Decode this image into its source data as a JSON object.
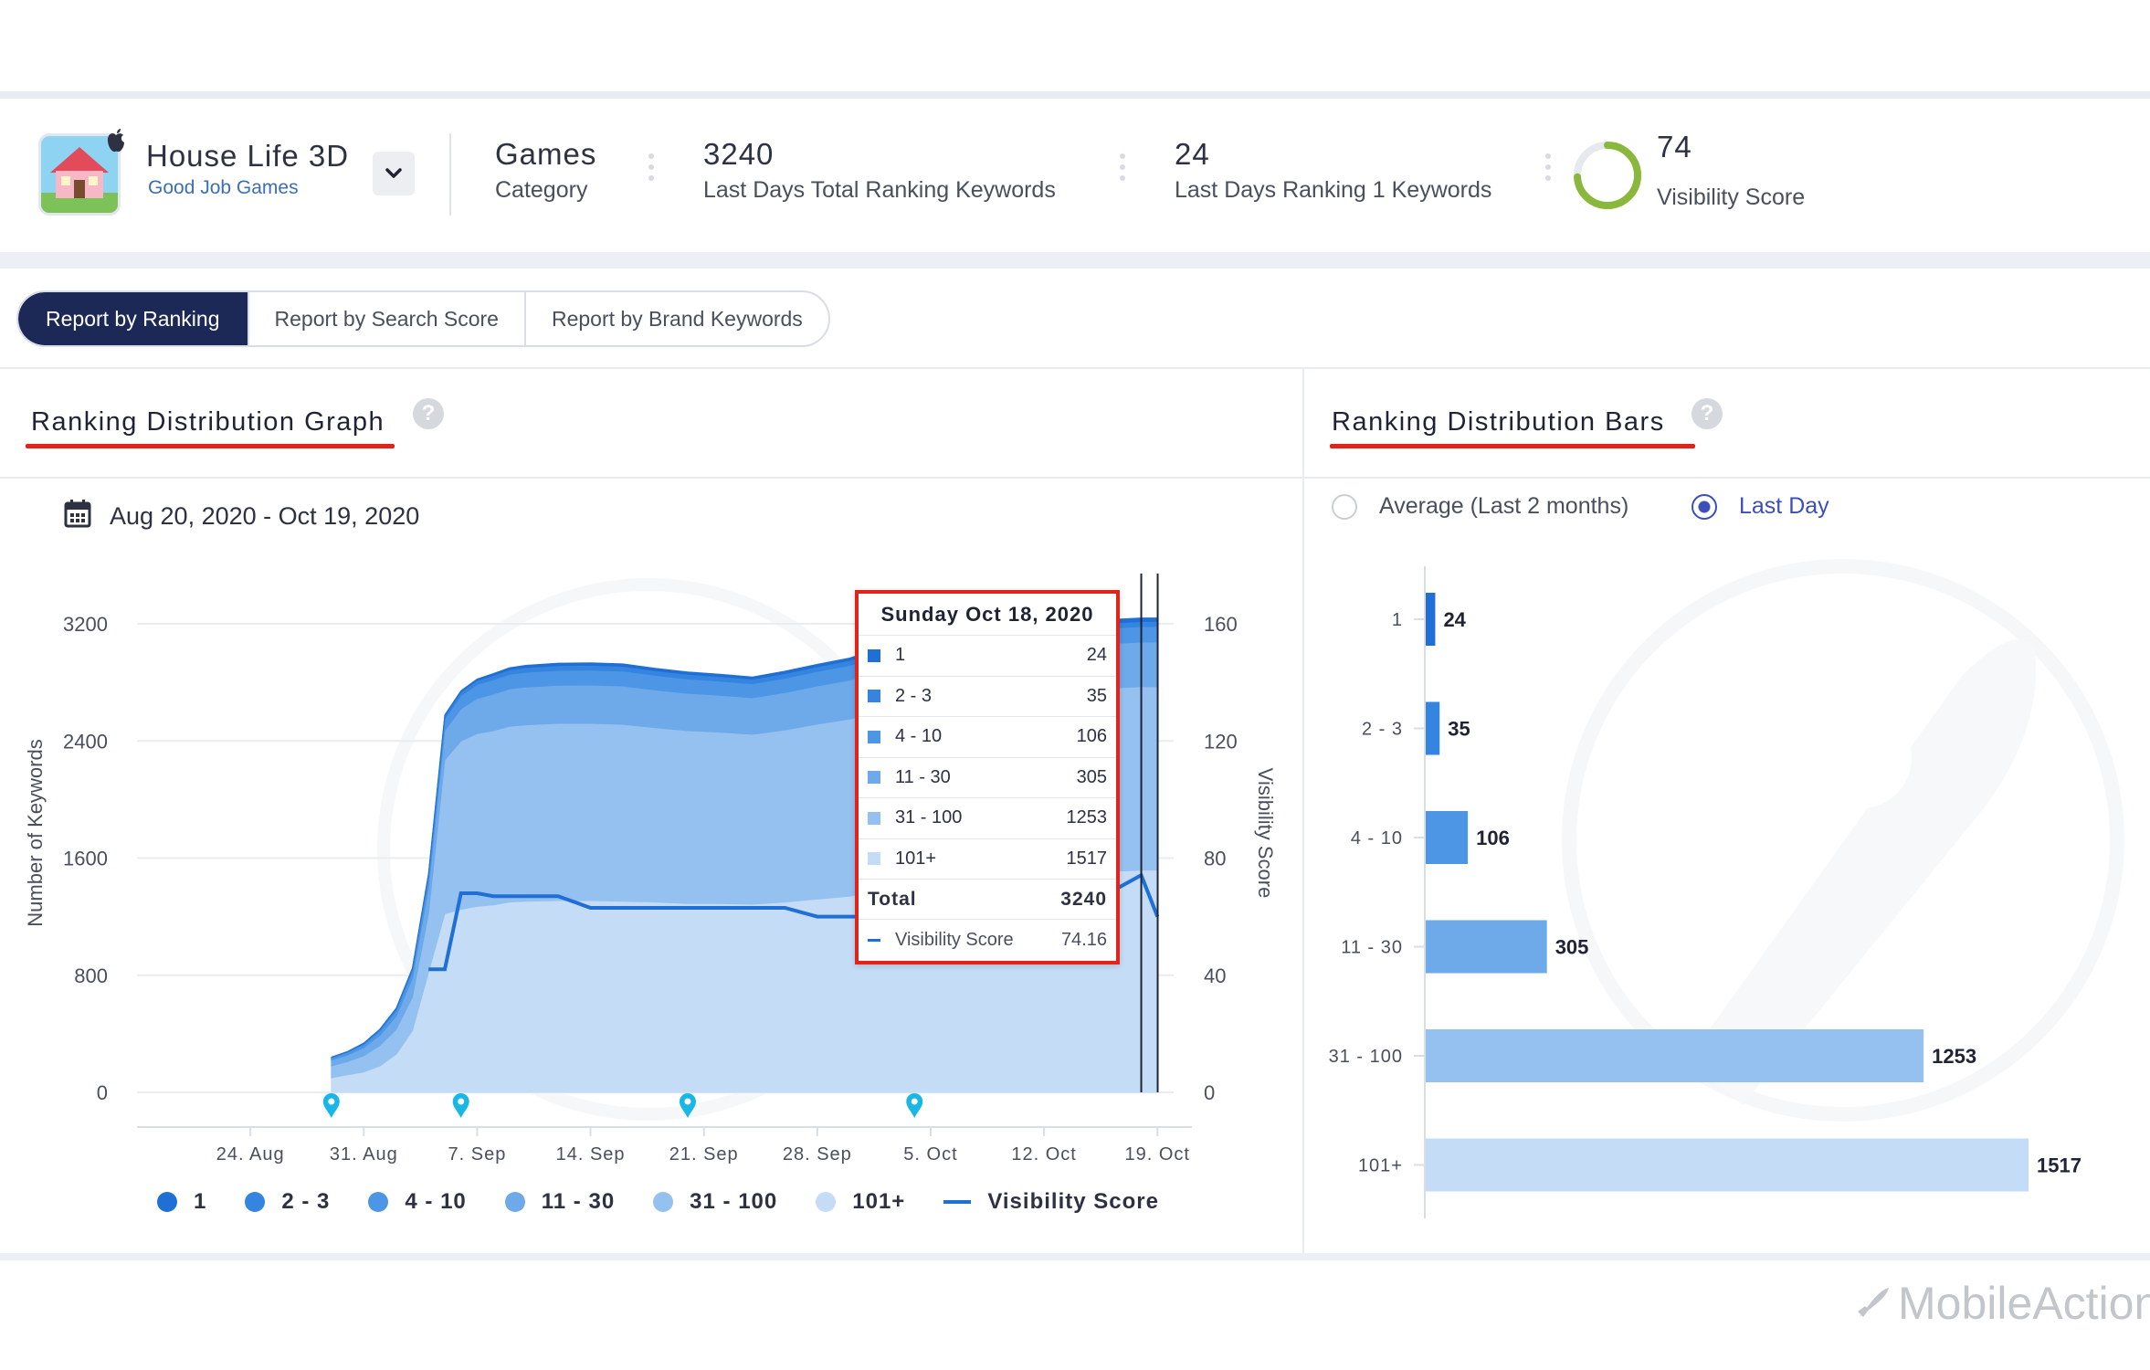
{
  "app": {
    "name": "House Life 3D",
    "developer": "Good Job Games"
  },
  "stats": {
    "category_value": "Games",
    "category_label": "Category",
    "total_keywords_value": "3240",
    "total_keywords_label": "Last Days Total Ranking Keywords",
    "rank1_value": "24",
    "rank1_label": "Last Days Ranking 1 Keywords",
    "visibility_value": "74",
    "visibility_label": "Visibility Score",
    "visibility_fraction": 0.74
  },
  "tabs": [
    {
      "label": "Report by Ranking",
      "active": true
    },
    {
      "label": "Report by Search Score",
      "active": false
    },
    {
      "label": "Report by Brand Keywords",
      "active": false
    }
  ],
  "graph_panel": {
    "title": "Ranking Distribution Graph",
    "help": "?",
    "date_range": "Aug 20, 2020 - Oct 19, 2020"
  },
  "bars_panel": {
    "title": "Ranking Distribution Bars",
    "help": "?",
    "radio_average": "Average (Last 2 months)",
    "radio_last_day": "Last Day",
    "selected": "Last Day"
  },
  "tooltip": {
    "date": "Sunday Oct 18, 2020",
    "rows": [
      {
        "label": "1",
        "value": "24"
      },
      {
        "label": "2 - 3",
        "value": "35"
      },
      {
        "label": "4 - 10",
        "value": "106"
      },
      {
        "label": "11 - 30",
        "value": "305"
      },
      {
        "label": "31 - 100",
        "value": "1253"
      },
      {
        "label": "101+",
        "value": "1517"
      }
    ],
    "total_label": "Total",
    "total_value": "3240",
    "vis_label": "Visibility Score",
    "vis_value": "74.16"
  },
  "legend": [
    {
      "label": "1",
      "color": "#1f6fd6"
    },
    {
      "label": "2 - 3",
      "color": "#3484e0"
    },
    {
      "label": "4 - 10",
      "color": "#4d96e6"
    },
    {
      "label": "11 - 30",
      "color": "#6eaaea"
    },
    {
      "label": "31 - 100",
      "color": "#95c1f0"
    },
    {
      "label": "101+",
      "color": "#c4dcf6"
    },
    {
      "label": "Visibility Score",
      "color": "#1f6fd6"
    }
  ],
  "watermark": "MobileAction",
  "chart_data": [
    {
      "type": "area",
      "ylabel": "Number of Keywords",
      "y2label": "Visibility Score",
      "ylim": [
        0,
        3200
      ],
      "y_ticks": [
        "0",
        "800",
        "1600",
        "2400",
        "3200"
      ],
      "y2lim": [
        0,
        160
      ],
      "y2_ticks": [
        "0",
        "40",
        "80",
        "120",
        "160"
      ],
      "x_ticks": [
        "24. Aug",
        "31. Aug",
        "7. Sep",
        "14. Sep",
        "21. Sep",
        "28. Sep",
        "5. Oct",
        "12. Oct",
        "19. Oct"
      ],
      "x_dates": [
        "2020-08-29",
        "2020-08-30",
        "2020-08-31",
        "2020-09-01",
        "2020-09-02",
        "2020-09-03",
        "2020-09-04",
        "2020-09-05",
        "2020-09-06",
        "2020-09-07",
        "2020-09-08",
        "2020-09-09",
        "2020-09-10",
        "2020-09-12",
        "2020-09-14",
        "2020-09-16",
        "2020-09-18",
        "2020-09-20",
        "2020-09-22",
        "2020-09-24",
        "2020-09-26",
        "2020-09-28",
        "2020-09-30",
        "2020-10-02",
        "2020-10-05",
        "2020-10-10",
        "2020-10-14",
        "2020-10-18",
        "2020-10-19"
      ],
      "series": [
        {
          "name": "1",
          "values": [
            0,
            0,
            2,
            2,
            3,
            3,
            5,
            6,
            8,
            10,
            12,
            14,
            15,
            16,
            16,
            16,
            16,
            16,
            15,
            15,
            16,
            16,
            17,
            18,
            20,
            22,
            23,
            24,
            24
          ]
        },
        {
          "name": "2 - 3",
          "values": [
            5,
            6,
            8,
            10,
            12,
            15,
            20,
            22,
            25,
            28,
            30,
            31,
            32,
            33,
            33,
            33,
            32,
            32,
            31,
            31,
            32,
            32,
            33,
            34,
            34,
            35,
            35,
            35,
            35
          ]
        },
        {
          "name": "4 - 10",
          "values": [
            15,
            18,
            22,
            30,
            40,
            50,
            70,
            80,
            90,
            95,
            98,
            100,
            101,
            102,
            102,
            102,
            100,
            98,
            97,
            96,
            98,
            100,
            101,
            103,
            104,
            105,
            106,
            106,
            106
          ]
        },
        {
          "name": "11 - 30",
          "values": [
            40,
            45,
            55,
            70,
            90,
            130,
            180,
            200,
            220,
            240,
            250,
            255,
            258,
            260,
            262,
            262,
            258,
            255,
            252,
            250,
            255,
            260,
            265,
            280,
            290,
            300,
            303,
            305,
            305
          ]
        },
        {
          "name": "31 - 100",
          "values": [
            80,
            90,
            110,
            140,
            170,
            230,
            400,
            1050,
            1150,
            1180,
            1190,
            1200,
            1205,
            1210,
            1210,
            1208,
            1190,
            1180,
            1170,
            1160,
            1175,
            1195,
            1210,
            1225,
            1235,
            1245,
            1250,
            1253,
            1253
          ]
        },
        {
          "name": "101+",
          "values": [
            100,
            120,
            140,
            180,
            260,
            420,
            820,
            1220,
            1250,
            1270,
            1280,
            1300,
            1305,
            1310,
            1310,
            1305,
            1300,
            1290,
            1290,
            1285,
            1300,
            1320,
            1340,
            1380,
            1420,
            1470,
            1500,
            1517,
            1517
          ]
        },
        {
          "name": "Visibility Score",
          "axis": "right",
          "values": [
            null,
            null,
            null,
            null,
            null,
            null,
            42,
            42,
            68,
            68,
            67,
            67,
            67,
            67,
            63,
            63,
            63,
            63,
            63,
            63,
            63,
            60,
            60,
            60,
            61,
            61,
            62,
            74.16,
            60
          ]
        }
      ]
    },
    {
      "type": "bar",
      "orientation": "horizontal",
      "categories": [
        "1",
        "2 - 3",
        "4 - 10",
        "11 - 30",
        "31 - 100",
        "101+"
      ],
      "values": [
        24,
        35,
        106,
        305,
        1253,
        1517
      ],
      "colors": [
        "#1f6fd6",
        "#3484e0",
        "#4d96e6",
        "#6eaaea",
        "#95c1f0",
        "#c4dcf6"
      ]
    }
  ]
}
